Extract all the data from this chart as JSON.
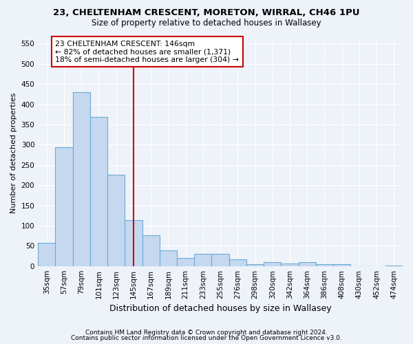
{
  "title1": "23, CHELTENHAM CRESCENT, MORETON, WIRRAL, CH46 1PU",
  "title2": "Size of property relative to detached houses in Wallasey",
  "xlabel": "Distribution of detached houses by size in Wallasey",
  "ylabel": "Number of detached properties",
  "categories": [
    "35sqm",
    "57sqm",
    "79sqm",
    "101sqm",
    "123sqm",
    "145sqm",
    "167sqm",
    "189sqm",
    "211sqm",
    "233sqm",
    "255sqm",
    "276sqm",
    "298sqm",
    "320sqm",
    "342sqm",
    "364sqm",
    "386sqm",
    "408sqm",
    "430sqm",
    "452sqm",
    "474sqm"
  ],
  "values": [
    57,
    293,
    430,
    368,
    226,
    113,
    76,
    39,
    20,
    30,
    30,
    16,
    5,
    10,
    7,
    9,
    4,
    5,
    0,
    0,
    2
  ],
  "bar_color": "#c5d8f0",
  "bar_edge_color": "#6aaad4",
  "marker_index": 5,
  "marker_color": "#cc0000",
  "ylim": [
    0,
    560
  ],
  "yticks": [
    0,
    50,
    100,
    150,
    200,
    250,
    300,
    350,
    400,
    450,
    500,
    550
  ],
  "annotation_line1": "23 CHELTENHAM CRESCENT: 146sqm",
  "annotation_line2": "← 82% of detached houses are smaller (1,371)",
  "annotation_line3": "18% of semi-detached houses are larger (304) →",
  "annotation_box_color": "#ffffff",
  "annotation_box_edge": "#cc0000",
  "footer1": "Contains HM Land Registry data © Crown copyright and database right 2024.",
  "footer2": "Contains public sector information licensed under the Open Government Licence v3.0.",
  "bg_color": "#eef2f9",
  "grid_color": "#ffffff",
  "title1_fontsize": 9.5,
  "title2_fontsize": 8.5,
  "ylabel_fontsize": 8,
  "xlabel_fontsize": 9,
  "tick_fontsize": 7.5,
  "annotation_fontsize": 7.8,
  "footer_fontsize": 6.5
}
